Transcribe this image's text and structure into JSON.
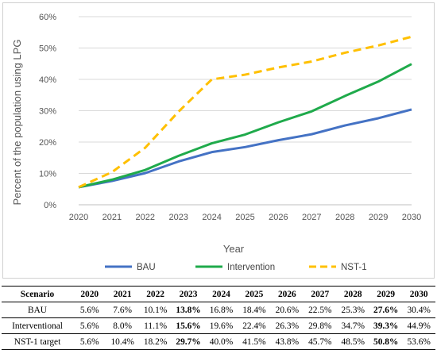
{
  "chart_data": {
    "type": "line",
    "x": [
      "2020",
      "2021",
      "2022",
      "2023",
      "2024",
      "2025",
      "2026",
      "2027",
      "2028",
      "2029",
      "2030"
    ],
    "xlabel": "Year",
    "ylabel": "Percent of the population using LPG",
    "ylim": [
      0,
      60
    ],
    "yticks": [
      "0%",
      "10%",
      "20%",
      "30%",
      "40%",
      "50%",
      "60%"
    ],
    "grid": true,
    "legend_position": "bottom",
    "series": [
      {
        "name": "BAU",
        "color": "#4472c4",
        "style": "solid",
        "values": [
          5.6,
          7.6,
          10.1,
          13.8,
          16.8,
          18.4,
          20.6,
          22.5,
          25.3,
          27.6,
          30.4
        ]
      },
      {
        "name": "Intervention",
        "color": "#1faa4b",
        "style": "solid",
        "values": [
          5.6,
          8.0,
          11.1,
          15.6,
          19.6,
          22.4,
          26.3,
          29.8,
          34.7,
          39.3,
          44.9
        ]
      },
      {
        "name": "NST-1",
        "color": "#ffc000",
        "style": "dashed",
        "values": [
          5.6,
          10.4,
          18.2,
          29.7,
          40.0,
          41.5,
          43.8,
          45.7,
          48.5,
          50.8,
          53.6
        ]
      }
    ]
  },
  "table": {
    "headers": [
      "Scenario",
      "2020",
      "2021",
      "2022",
      "2023",
      "2024",
      "2025",
      "2026",
      "2027",
      "2028",
      "2029",
      "2030"
    ],
    "rows": [
      {
        "cells": [
          "BAU",
          "5.6%",
          "7.6%",
          "10.1%",
          "13.8%",
          "16.8%",
          "18.4%",
          "20.6%",
          "22.5%",
          "25.3%",
          "27.6%",
          "30.4%"
        ],
        "bold": [
          4,
          10
        ]
      },
      {
        "cells": [
          "Interventional",
          "5.6%",
          "8.0%",
          "11.1%",
          "15.6%",
          "19.6%",
          "22.4%",
          "26.3%",
          "29.8%",
          "34.7%",
          "39.3%",
          "44.9%"
        ],
        "bold": [
          4,
          10
        ]
      },
      {
        "cells": [
          "NST-1 target",
          "5.6%",
          "10.4%",
          "18.2%",
          "29.7%",
          "40.0%",
          "41.5%",
          "43.8%",
          "45.7%",
          "48.5%",
          "50.8%",
          "53.6%"
        ],
        "bold": [
          4,
          10
        ]
      }
    ]
  }
}
